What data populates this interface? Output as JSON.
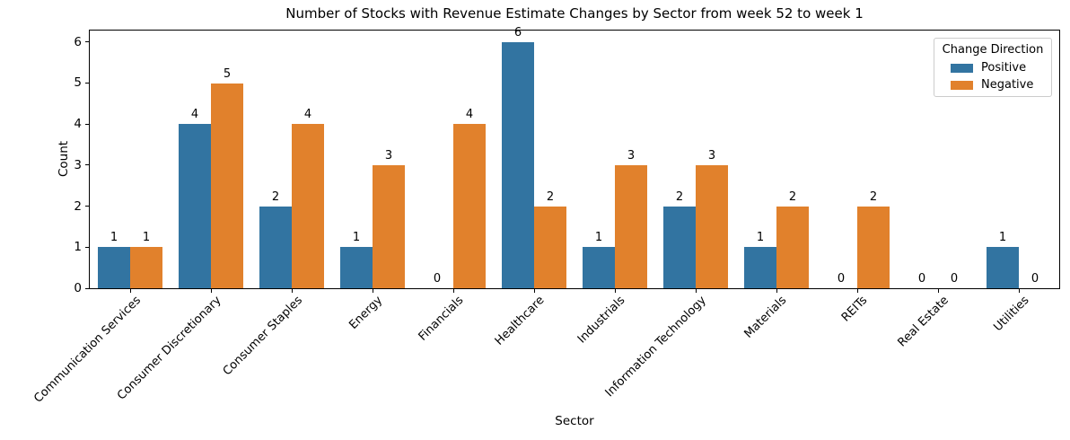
{
  "chart_data": {
    "type": "bar",
    "title": "Number of Stocks with Revenue Estimate Changes by Sector from week 52 to week 1",
    "xlabel": "Sector",
    "ylabel": "Count",
    "categories": [
      "Communication Services",
      "Consumer Discretionary",
      "Consumer Staples",
      "Energy",
      "Financials",
      "Healthcare",
      "Industrials",
      "Information Technology",
      "Materials",
      "REITs",
      "Real Estate",
      "Utilities"
    ],
    "series": [
      {
        "name": "Positive",
        "color": "#3274a1",
        "values": [
          1,
          4,
          2,
          1,
          0,
          6,
          1,
          2,
          1,
          0,
          0,
          1
        ]
      },
      {
        "name": "Negative",
        "color": "#e1812c",
        "values": [
          1,
          5,
          4,
          3,
          4,
          2,
          3,
          3,
          2,
          2,
          0,
          0
        ]
      }
    ],
    "legend": {
      "title": "Change Direction",
      "position": "upper right"
    },
    "ylim": [
      0,
      6.28
    ],
    "yticks": [
      0,
      1,
      2,
      3,
      4,
      5,
      6
    ],
    "bar_value_labels": true,
    "grid": false,
    "x_tick_rotation_deg": 45,
    "colors": {
      "spine": "#000000",
      "text": "#000000",
      "legend_border": "#cccccc",
      "background": "#ffffff"
    }
  }
}
